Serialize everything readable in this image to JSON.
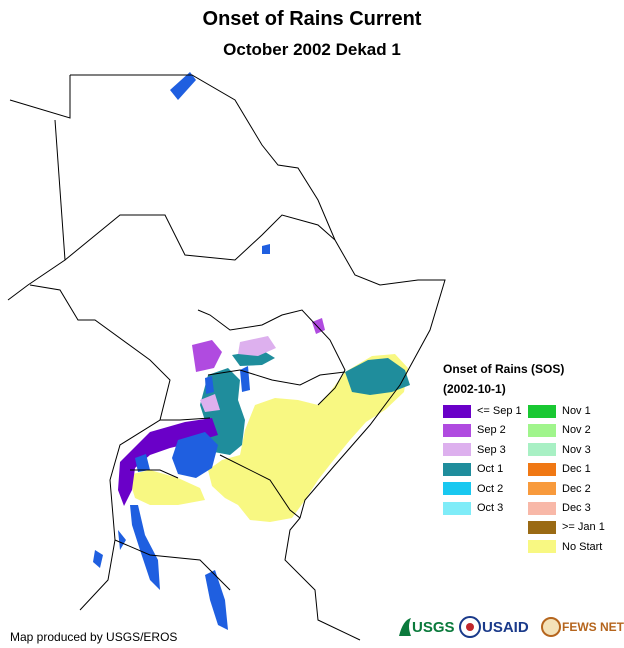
{
  "header": {
    "title": "Onset of Rains Current",
    "subtitle": "October 2002 Dekad 1"
  },
  "legend": {
    "title": "Onset of Rains (SOS)",
    "date": "(2002-10-1)",
    "items": [
      {
        "label": "<= Sep 1",
        "color": "#6a00c8"
      },
      {
        "label": "Sep 2",
        "color": "#b04be0"
      },
      {
        "label": "Sep 3",
        "color": "#ddb0ee"
      },
      {
        "label": "Oct 1",
        "color": "#1f8d9c"
      },
      {
        "label": "Oct 2",
        "color": "#19c8f0"
      },
      {
        "label": "Oct 3",
        "color": "#7fecf8"
      },
      {
        "label": "Nov 1",
        "color": "#19c832"
      },
      {
        "label": "Nov 2",
        "color": "#a0f58c"
      },
      {
        "label": "Nov 3",
        "color": "#a8f0c4"
      },
      {
        "label": "Dec 1",
        "color": "#f07814"
      },
      {
        "label": "Dec 2",
        "color": "#f89a3c"
      },
      {
        "label": "Dec 3",
        "color": "#f8b8a8"
      },
      {
        "label": ">= Jan 1",
        "color": "#9a6a14"
      },
      {
        "label": "No Start",
        "color": "#f8f882"
      }
    ]
  },
  "credit": "Map produced by USGS/EROS",
  "logos": {
    "usgs": "USGS",
    "usaid": "USAID",
    "fewsnet": "FEWS NET"
  },
  "colors": {
    "water": "#1f5fe0",
    "border": "#000000"
  }
}
